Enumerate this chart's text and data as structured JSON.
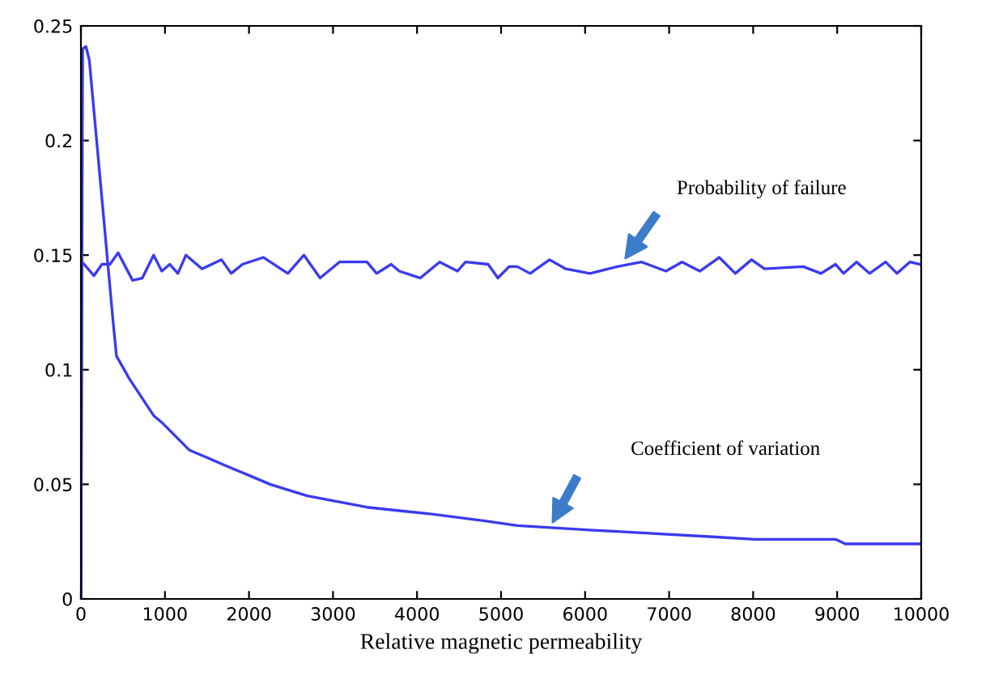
{
  "chart_data": {
    "type": "line",
    "xlabel": "Relative magnetic permeability",
    "xlim": [
      0,
      10000
    ],
    "ylim": [
      0,
      0.25
    ],
    "xticks": [
      0,
      1000,
      2000,
      3000,
      4000,
      5000,
      6000,
      7000,
      8000,
      9000,
      10000
    ],
    "yticks": [
      0,
      0.05,
      0.1,
      0.15,
      0.2,
      0.25
    ],
    "grid": false,
    "legend": false,
    "marker": "none",
    "line_style": "solid",
    "series": [
      {
        "color": "#3a3af0",
        "x": [
          0,
          10,
          38,
          154,
          250,
          346,
          442,
          615,
          731,
          865,
          962,
          1058,
          1154,
          1250,
          1442,
          1673,
          1788,
          1923,
          2173,
          2462,
          2654,
          2846,
          3077,
          3404,
          3519,
          3692,
          3788,
          4038,
          4269,
          4481,
          4577,
          4846,
          4962,
          5096,
          5192,
          5346,
          5577,
          5769,
          6058,
          6385,
          6673,
          6962,
          7154,
          7365,
          7596,
          7788,
          7981,
          8135,
          8596,
          8808,
          8981,
          9077,
          9231,
          9385,
          9577,
          9712,
          9865,
          9981
        ],
        "values": [
          0,
          0.147,
          0.146,
          0.141,
          0.146,
          0.146,
          0.151,
          0.139,
          0.14,
          0.15,
          0.143,
          0.146,
          0.142,
          0.15,
          0.144,
          0.148,
          0.142,
          0.146,
          0.149,
          0.142,
          0.15,
          0.14,
          0.147,
          0.147,
          0.142,
          0.146,
          0.143,
          0.14,
          0.147,
          0.143,
          0.147,
          0.146,
          0.14,
          0.145,
          0.145,
          0.142,
          0.148,
          0.144,
          0.142,
          0.145,
          0.147,
          0.143,
          0.147,
          0.143,
          0.149,
          0.142,
          0.148,
          0.144,
          0.145,
          0.142,
          0.146,
          0.142,
          0.147,
          0.142,
          0.147,
          0.142,
          0.147,
          0.146
        ]
      },
      {
        "color": "#3a3af0",
        "x": [
          0,
          20,
          60,
          100,
          385,
          423,
          577,
          865,
          962,
          1288,
          1731,
          2058,
          2250,
          2692,
          3404,
          4173,
          4808,
          5192,
          6096,
          7558,
          8019,
          8981,
          9096,
          9981
        ],
        "values": [
          0,
          0.24,
          0.241,
          0.235,
          0.12,
          0.106,
          0.096,
          0.08,
          0.077,
          0.065,
          0.058,
          0.053,
          0.05,
          0.045,
          0.04,
          0.037,
          0.034,
          0.032,
          0.03,
          0.027,
          0.026,
          0.026,
          0.024,
          0.024
        ]
      }
    ],
    "annotations": [
      "Probability of failure",
      "Coefficient of variation"
    ]
  }
}
